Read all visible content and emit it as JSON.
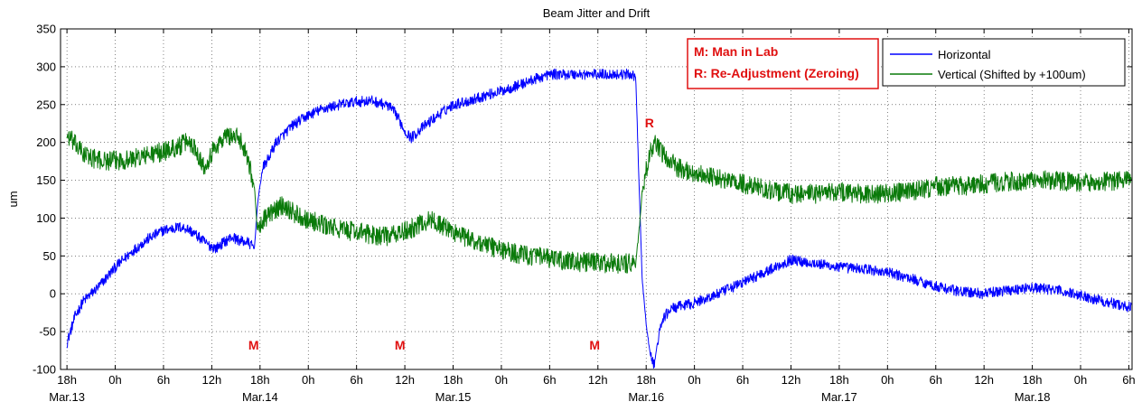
{
  "chart_data": {
    "type": "line",
    "title": "Beam Jitter and Drift",
    "xlabel": "",
    "ylabel": "um",
    "ylim": [
      -100,
      350
    ],
    "yticks": [
      -100,
      -50,
      0,
      50,
      100,
      150,
      200,
      250,
      300,
      350
    ],
    "x_unit": "hours since Mar.13 0h",
    "xlim": [
      -6.8,
      126.4
    ],
    "xticks": [
      {
        "x": -6,
        "label": "18h",
        "date": "Mar.13"
      },
      {
        "x": 0,
        "label": "0h",
        "date": ""
      },
      {
        "x": 6,
        "label": "6h",
        "date": ""
      },
      {
        "x": 12,
        "label": "12h",
        "date": ""
      },
      {
        "x": 18,
        "label": "18h",
        "date": "Mar.14"
      },
      {
        "x": 24,
        "label": "0h",
        "date": ""
      },
      {
        "x": 30,
        "label": "6h",
        "date": ""
      },
      {
        "x": 36,
        "label": "12h",
        "date": ""
      },
      {
        "x": 42,
        "label": "18h",
        "date": "Mar.15"
      },
      {
        "x": 48,
        "label": "0h",
        "date": ""
      },
      {
        "x": 54,
        "label": "6h",
        "date": ""
      },
      {
        "x": 60,
        "label": "12h",
        "date": ""
      },
      {
        "x": 66,
        "label": "18h",
        "date": "Mar.16"
      },
      {
        "x": 72,
        "label": "0h",
        "date": ""
      },
      {
        "x": 78,
        "label": "6h",
        "date": ""
      },
      {
        "x": 84,
        "label": "12h",
        "date": ""
      },
      {
        "x": 90,
        "label": "18h",
        "date": "Mar.17"
      },
      {
        "x": 96,
        "label": "0h",
        "date": ""
      },
      {
        "x": 102,
        "label": "6h",
        "date": ""
      },
      {
        "x": 108,
        "label": "12h",
        "date": ""
      },
      {
        "x": 114,
        "label": "18h",
        "date": "Mar.18"
      },
      {
        "x": 120,
        "label": "0h",
        "date": ""
      },
      {
        "x": 126,
        "label": "6h",
        "date": ""
      }
    ],
    "grid": true,
    "legend_position": "top-right",
    "series": [
      {
        "name": "Horizontal",
        "color": "#0000ff",
        "noise": 7,
        "points": [
          [
            -6,
            -65
          ],
          [
            -5,
            -30
          ],
          [
            -4,
            -10
          ],
          [
            -2,
            10
          ],
          [
            0,
            35
          ],
          [
            2,
            55
          ],
          [
            4,
            72
          ],
          [
            6,
            84
          ],
          [
            8,
            88
          ],
          [
            9,
            86
          ],
          [
            10,
            78
          ],
          [
            11.5,
            65
          ],
          [
            12.5,
            60
          ],
          [
            13.5,
            68
          ],
          [
            14.5,
            75
          ],
          [
            15.5,
            70
          ],
          [
            16.5,
            68
          ],
          [
            17.3,
            60
          ],
          [
            17.7,
            120
          ],
          [
            18.3,
            165
          ],
          [
            19,
            178
          ],
          [
            20,
            200
          ],
          [
            22,
            222
          ],
          [
            24,
            236
          ],
          [
            26,
            245
          ],
          [
            28,
            250
          ],
          [
            30,
            254
          ],
          [
            32,
            255
          ],
          [
            34,
            248
          ],
          [
            35,
            236
          ],
          [
            36,
            215
          ],
          [
            36.8,
            206
          ],
          [
            38,
            218
          ],
          [
            40,
            235
          ],
          [
            42,
            250
          ],
          [
            44,
            255
          ],
          [
            46,
            262
          ],
          [
            48,
            268
          ],
          [
            50,
            275
          ],
          [
            52,
            283
          ],
          [
            54,
            290
          ],
          [
            56,
            290
          ],
          [
            58,
            290
          ],
          [
            60,
            290
          ],
          [
            62,
            290
          ],
          [
            64,
            290
          ],
          [
            64.7,
            288
          ],
          [
            65.1,
            150
          ],
          [
            65.5,
            20
          ],
          [
            66,
            -40
          ],
          [
            66.5,
            -80
          ],
          [
            67,
            -95
          ],
          [
            67.4,
            -65
          ],
          [
            68,
            -35
          ],
          [
            69,
            -20
          ],
          [
            72,
            -12
          ],
          [
            75,
            0
          ],
          [
            78,
            15
          ],
          [
            81,
            30
          ],
          [
            84,
            45
          ],
          [
            87,
            40
          ],
          [
            90,
            35
          ],
          [
            93,
            33
          ],
          [
            96,
            28
          ],
          [
            99,
            20
          ],
          [
            102,
            10
          ],
          [
            105,
            3
          ],
          [
            108,
            0
          ],
          [
            111,
            5
          ],
          [
            114,
            8
          ],
          [
            117,
            5
          ],
          [
            120,
            -2
          ],
          [
            123,
            -10
          ],
          [
            126.3,
            -18
          ]
        ]
      },
      {
        "name": "Vertical (Shifted by +100um)",
        "color": "#0a7a0a",
        "noise": 13,
        "points": [
          [
            -6,
            210
          ],
          [
            -4,
            185
          ],
          [
            -2,
            176
          ],
          [
            0,
            176
          ],
          [
            2,
            178
          ],
          [
            4,
            183
          ],
          [
            6,
            188
          ],
          [
            8,
            195
          ],
          [
            9,
            202
          ],
          [
            10,
            192
          ],
          [
            11,
            168
          ],
          [
            12.5,
            195
          ],
          [
            14,
            210
          ],
          [
            15.5,
            205
          ],
          [
            16.5,
            180
          ],
          [
            17.3,
            140
          ],
          [
            17.7,
            80
          ],
          [
            18.3,
            98
          ],
          [
            19,
            102
          ],
          [
            20,
            112
          ],
          [
            21,
            118
          ],
          [
            22,
            108
          ],
          [
            24,
            98
          ],
          [
            26,
            90
          ],
          [
            28,
            85
          ],
          [
            30,
            82
          ],
          [
            32,
            78
          ],
          [
            34,
            76
          ],
          [
            36,
            82
          ],
          [
            38,
            92
          ],
          [
            39,
            98
          ],
          [
            40,
            94
          ],
          [
            42,
            82
          ],
          [
            44,
            72
          ],
          [
            46,
            65
          ],
          [
            48,
            58
          ],
          [
            50,
            53
          ],
          [
            52,
            50
          ],
          [
            54,
            46
          ],
          [
            56,
            43
          ],
          [
            58,
            42
          ],
          [
            60,
            41
          ],
          [
            62,
            40
          ],
          [
            64,
            40
          ],
          [
            64.7,
            42
          ],
          [
            65.1,
            80
          ],
          [
            65.5,
            135
          ],
          [
            66,
            162
          ],
          [
            66.5,
            185
          ],
          [
            67,
            198
          ],
          [
            68,
            185
          ],
          [
            70,
            166
          ],
          [
            72,
            160
          ],
          [
            75,
            152
          ],
          [
            78,
            145
          ],
          [
            81,
            138
          ],
          [
            84,
            132
          ],
          [
            87,
            132
          ],
          [
            90,
            135
          ],
          [
            93,
            132
          ],
          [
            96,
            132
          ],
          [
            99,
            135
          ],
          [
            102,
            142
          ],
          [
            105,
            142
          ],
          [
            108,
            145
          ],
          [
            111,
            148
          ],
          [
            114,
            150
          ],
          [
            117,
            150
          ],
          [
            120,
            146
          ],
          [
            123,
            148
          ],
          [
            126.3,
            150
          ]
        ]
      }
    ],
    "annotations": [
      {
        "text": "M",
        "x": 17.2,
        "y": -68,
        "color": "#e01010"
      },
      {
        "text": "M",
        "x": 35.4,
        "y": -68,
        "color": "#e01010"
      },
      {
        "text": "M",
        "x": 59.6,
        "y": -68,
        "color": "#e01010"
      },
      {
        "text": "R",
        "x": 66.4,
        "y": 226,
        "color": "#e01010"
      }
    ],
    "note_box": {
      "lines": [
        "M: Man in Lab",
        "R: Re-Adjustment (Zeroing)"
      ],
      "color": "#e01010"
    }
  }
}
